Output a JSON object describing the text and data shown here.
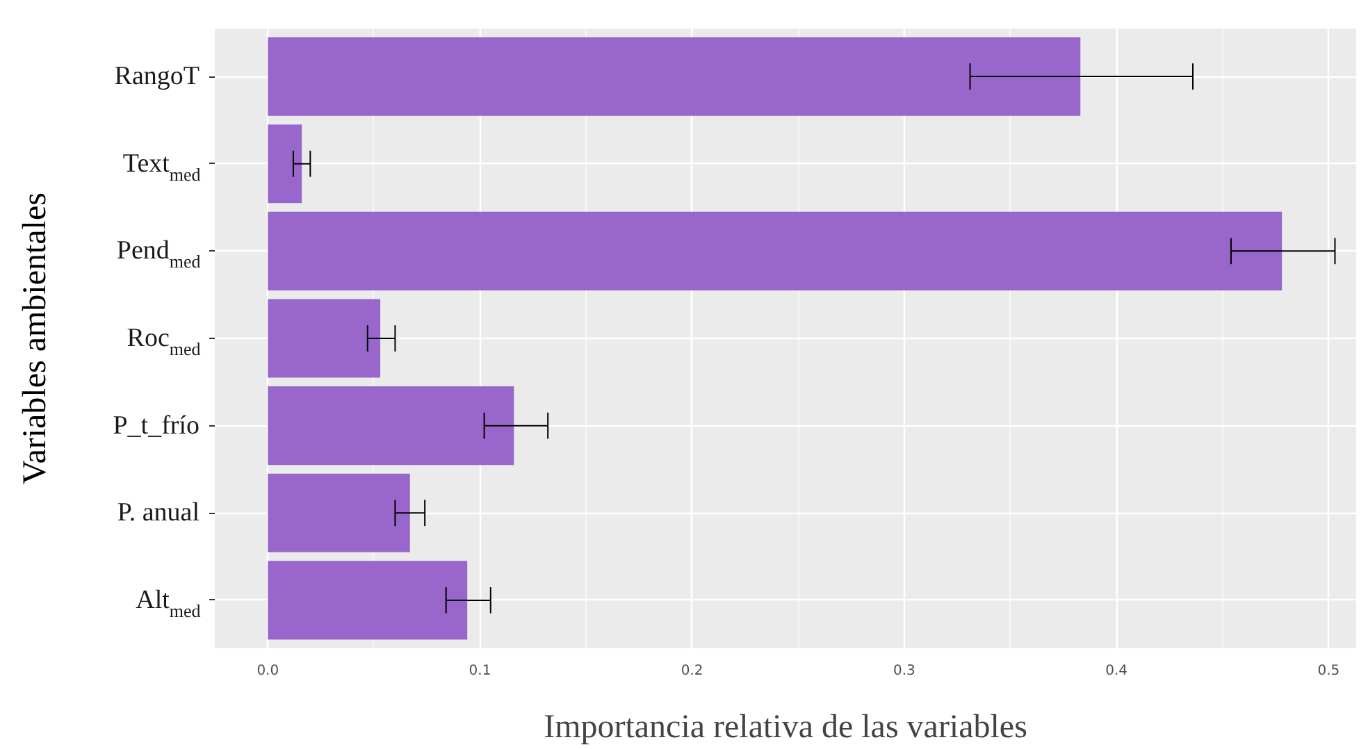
{
  "chart_data": {
    "type": "bar",
    "orientation": "horizontal",
    "xlabel": "Importancia relativa de las variables",
    "ylabel": "Variables ambientales",
    "categories": [
      "RangoT",
      "Text$_{med}$",
      "Pend$_{med}$",
      "Roc$_{med}$",
      "P_t_frío",
      "P. anual",
      "Alt$_{med}$"
    ],
    "values": [
      0.383,
      0.016,
      0.478,
      0.053,
      0.116,
      0.067,
      0.094
    ],
    "errors": [
      [
        0.331,
        0.436
      ],
      [
        0.012,
        0.02
      ],
      [
        0.454,
        0.503
      ],
      [
        0.047,
        0.06
      ],
      [
        0.102,
        0.132
      ],
      [
        0.06,
        0.074
      ],
      [
        0.084,
        0.105
      ]
    ],
    "color": "#9966cc",
    "xlim": [
      -0.025,
      0.513
    ],
    "xticks": [
      {
        "value": 0,
        "label": "0.0"
      },
      0.1,
      0.2,
      0.3,
      0.4,
      0.5
    ],
    "grid": true
  }
}
